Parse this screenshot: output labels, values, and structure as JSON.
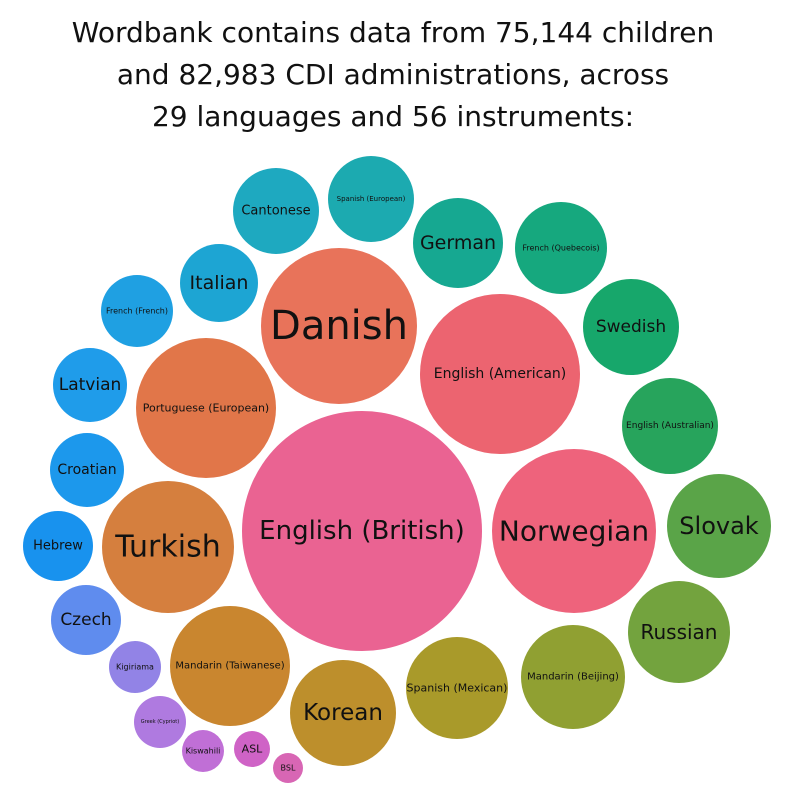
{
  "header": {
    "title_lines": [
      "Wordbank contains data from 75,144 children",
      "and 82,983 CDI administrations, across",
      "29 languages and 56 instruments:"
    ]
  },
  "chart_data": {
    "type": "bubble",
    "title": "Wordbank contains data from 75,144 children and 82,983 CDI administrations, across 29 languages and 56 instruments:",
    "items": [
      {
        "label": "English (British)",
        "color": "#ea6392"
      },
      {
        "label": "Danish",
        "color": "#e8735a"
      },
      {
        "label": "English (American)",
        "color": "#ec6470"
      },
      {
        "label": "Norwegian",
        "color": "#ee637c"
      },
      {
        "label": "Portuguese (European)",
        "color": "#e17649"
      },
      {
        "label": "Turkish",
        "color": "#d57f3e"
      },
      {
        "label": "Mandarin (Taiwanese)",
        "color": "#c9862f"
      },
      {
        "label": "Korean",
        "color": "#bd8f2c"
      },
      {
        "label": "Spanish (Mexican)",
        "color": "#a99a2a"
      },
      {
        "label": "Mandarin (Beijing)",
        "color": "#90a032"
      },
      {
        "label": "Russian",
        "color": "#73a33e"
      },
      {
        "label": "Slovak",
        "color": "#5aa448"
      },
      {
        "label": "English (Australian)",
        "color": "#27a45c"
      },
      {
        "label": "Swedish",
        "color": "#17a76b"
      },
      {
        "label": "French (Quebecois)",
        "color": "#16a87e"
      },
      {
        "label": "German",
        "color": "#16a891"
      },
      {
        "label": "Spanish (European)",
        "color": "#1caab0"
      },
      {
        "label": "Cantonese",
        "color": "#1ea9c0"
      },
      {
        "label": "Italian",
        "color": "#1da5d3"
      },
      {
        "label": "French (French)",
        "color": "#1fa0e2"
      },
      {
        "label": "Latvian",
        "color": "#1f9cea"
      },
      {
        "label": "Croatian",
        "color": "#1c98ec"
      },
      {
        "label": "Hebrew",
        "color": "#1892ee"
      },
      {
        "label": "Czech",
        "color": "#5f8cee"
      },
      {
        "label": "Kigiriama",
        "color": "#9283e6"
      },
      {
        "label": "Greek (Cypriot)",
        "color": "#af7ae0"
      },
      {
        "label": "Kiswahili",
        "color": "#c06fd6"
      },
      {
        "label": "ASL",
        "color": "#cf63c6"
      },
      {
        "label": "BSL",
        "color": "#d866b4"
      }
    ]
  }
}
